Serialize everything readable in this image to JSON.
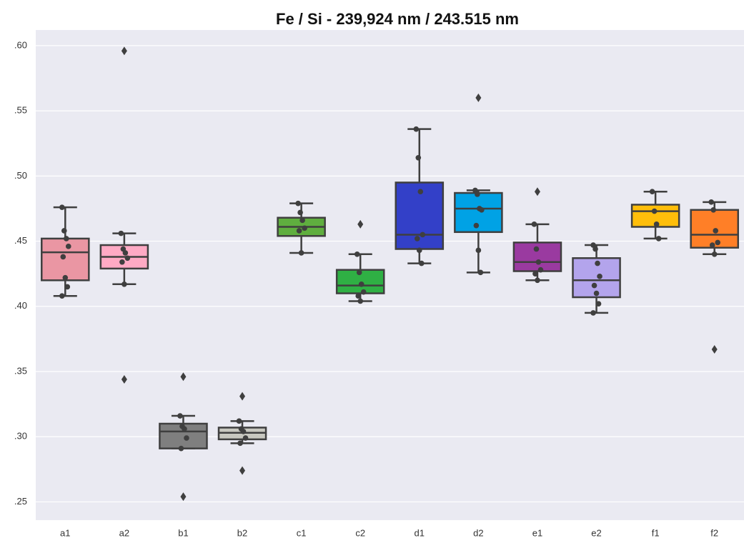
{
  "chart_data": {
    "type": "box",
    "title": "Fe / Si - 239,924 nm / 243.515 nm",
    "categories": [
      "a1",
      "a2",
      "b1",
      "b2",
      "c1",
      "c2",
      "d1",
      "d2",
      "e1",
      "e2",
      "f1",
      "f2"
    ],
    "ylim": [
      0.236,
      0.612
    ],
    "yticks": [
      {
        "value": 0.25,
        "label": ".25"
      },
      {
        "value": 0.3,
        "label": ".30"
      },
      {
        "value": 0.35,
        "label": ".35"
      },
      {
        "value": 0.4,
        "label": ".40"
      },
      {
        "value": 0.45,
        "label": ".45"
      },
      {
        "value": 0.5,
        "label": ".50"
      },
      {
        "value": 0.55,
        "label": ".55"
      },
      {
        "value": 0.6,
        "label": ".60"
      }
    ],
    "grid": true,
    "boxes": [
      {
        "color": "#ea96a3",
        "whislo": 0.408,
        "q1": 0.42,
        "med": 0.4415,
        "q3": 0.452,
        "whishi": 0.476,
        "fliers": [],
        "points": [
          0.476,
          0.458,
          0.452,
          0.446,
          0.438,
          0.422,
          0.415,
          0.408
        ]
      },
      {
        "color": "#ffaac4",
        "whislo": 0.417,
        "q1": 0.429,
        "med": 0.438,
        "q3": 0.447,
        "whishi": 0.456,
        "fliers": [
          0.596,
          0.344
        ],
        "points": [
          0.456,
          0.444,
          0.441,
          0.437,
          0.434,
          0.417
        ]
      },
      {
        "color": "#7f7f7f",
        "whislo": 0.291,
        "q1": 0.291,
        "med": 0.304,
        "q3": 0.31,
        "whishi": 0.316,
        "fliers": [
          0.346,
          0.254
        ],
        "points": [
          0.316,
          0.308,
          0.306,
          0.299,
          0.291
        ]
      },
      {
        "color": "#c8c8c0",
        "whislo": 0.295,
        "q1": 0.298,
        "med": 0.303,
        "q3": 0.307,
        "whishi": 0.312,
        "fliers": [
          0.331,
          0.274
        ],
        "points": [
          0.312,
          0.306,
          0.304,
          0.299,
          0.295
        ]
      },
      {
        "color": "#5fae3f",
        "whislo": 0.441,
        "q1": 0.454,
        "med": 0.461,
        "q3": 0.468,
        "whishi": 0.479,
        "fliers": [],
        "points": [
          0.479,
          0.472,
          0.466,
          0.46,
          0.458,
          0.441
        ]
      },
      {
        "color": "#2fb044",
        "whislo": 0.404,
        "q1": 0.41,
        "med": 0.416,
        "q3": 0.428,
        "whishi": 0.44,
        "fliers": [
          0.463
        ],
        "points": [
          0.44,
          0.426,
          0.417,
          0.411,
          0.408,
          0.404
        ]
      },
      {
        "color": "#3340c8",
        "whislo": 0.433,
        "q1": 0.444,
        "med": 0.455,
        "q3": 0.495,
        "whishi": 0.536,
        "fliers": [],
        "points": [
          0.536,
          0.514,
          0.488,
          0.455,
          0.452,
          0.443,
          0.433
        ]
      },
      {
        "color": "#00a2e5",
        "whislo": 0.426,
        "q1": 0.457,
        "med": 0.475,
        "q3": 0.487,
        "whishi": 0.489,
        "fliers": [
          0.56
        ],
        "points": [
          0.489,
          0.486,
          0.475,
          0.474,
          0.462,
          0.443,
          0.426
        ]
      },
      {
        "color": "#9a3aa0",
        "whislo": 0.42,
        "q1": 0.427,
        "med": 0.434,
        "q3": 0.449,
        "whishi": 0.463,
        "fliers": [
          0.488
        ],
        "points": [
          0.463,
          0.444,
          0.434,
          0.428,
          0.425,
          0.42
        ]
      },
      {
        "color": "#b3a4ec",
        "whislo": 0.395,
        "q1": 0.407,
        "med": 0.42,
        "q3": 0.437,
        "whishi": 0.447,
        "fliers": [],
        "points": [
          0.447,
          0.444,
          0.433,
          0.423,
          0.416,
          0.41,
          0.402,
          0.395
        ]
      },
      {
        "color": "#ffbe0a",
        "whislo": 0.452,
        "q1": 0.461,
        "med": 0.473,
        "q3": 0.478,
        "whishi": 0.488,
        "fliers": [],
        "points": [
          0.488,
          0.473,
          0.463,
          0.452
        ]
      },
      {
        "color": "#ff7f27",
        "whislo": 0.44,
        "q1": 0.445,
        "med": 0.455,
        "q3": 0.474,
        "whishi": 0.48,
        "fliers": [
          0.367
        ],
        "points": [
          0.48,
          0.474,
          0.458,
          0.449,
          0.447,
          0.44
        ]
      }
    ]
  }
}
